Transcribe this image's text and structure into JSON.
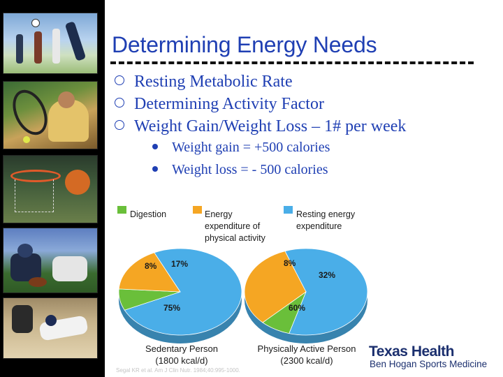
{
  "slide": {
    "title": "Determining Energy Needs",
    "bullets": [
      "Resting Metabolic Rate",
      "Determining Activity Factor",
      "Weight Gain/Weight Loss – 1# per week"
    ],
    "sub_bullets": [
      "Weight gain = +500 calories",
      "Weight loss = - 500 calories"
    ]
  },
  "colors": {
    "title": "#1f3fb3",
    "digestion": "#6abf3a",
    "activity": "#f5a623",
    "resting": "#4aaee8"
  },
  "chart_data": {
    "type": "pie",
    "legend": {
      "digestion": "Digestion",
      "activity_line1": "Energy",
      "activity_line2": "expenditure of",
      "activity_line3": "physical activity",
      "resting_line1": "Resting energy",
      "resting_line2": "expenditure"
    },
    "pies": [
      {
        "name_line1": "Sedentary Person",
        "name_line2": "(1800 kcal/d)",
        "slices": [
          {
            "component": "Resting energy expenditure",
            "label": "75%",
            "value": 75
          },
          {
            "component": "Digestion",
            "label": "8%",
            "value": 8
          },
          {
            "component": "Energy expenditure of physical activity",
            "label": "17%",
            "value": 17
          }
        ]
      },
      {
        "name_line1": "Physically Active Person",
        "name_line2": "(2300 kcal/d)",
        "slices": [
          {
            "component": "Resting energy expenditure",
            "label": "60%",
            "value": 60
          },
          {
            "component": "Digestion",
            "label": "8%",
            "value": 8
          },
          {
            "component": "Energy expenditure of physical activity",
            "label": "32%",
            "value": 32
          }
        ]
      }
    ],
    "source": "Segal KR et al. Am J Clin Nutr. 1984;40:995-1000."
  },
  "branding": {
    "line1": "Texas Health",
    "line2": "Ben Hogan Sports Medicine"
  }
}
